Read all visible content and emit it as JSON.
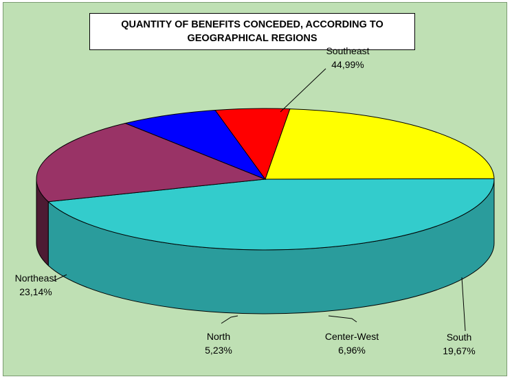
{
  "chart_data": {
    "type": "pie",
    "style": "3d",
    "title": [
      "QUANTITY OF BENEFITS CONCEDED, ACCORDING TO",
      "GEOGRAPHICAL REGIONS"
    ],
    "slices": [
      {
        "name": "Southeast",
        "value_label": "44,99%",
        "value": 44.99,
        "color": "#33cccc",
        "side_color": "#2a9c9c"
      },
      {
        "name": "South",
        "value_label": "19,67%",
        "value": 19.67,
        "color": "#993366",
        "side_color": "#4d1b33"
      },
      {
        "name": "Center-West",
        "value_label": "6,96%",
        "value": 6.96,
        "color": "#0000ff",
        "side_color": "#000080"
      },
      {
        "name": "North",
        "value_label": "5,23%",
        "value": 5.23,
        "color": "#ff0000",
        "side_color": "#800000"
      },
      {
        "name": "Northeast",
        "value_label": "23,14%",
        "value": 23.14,
        "color": "#ffff00",
        "side_color": "#808000"
      }
    ],
    "legend": "none",
    "background_color": "#bfe0b4"
  }
}
